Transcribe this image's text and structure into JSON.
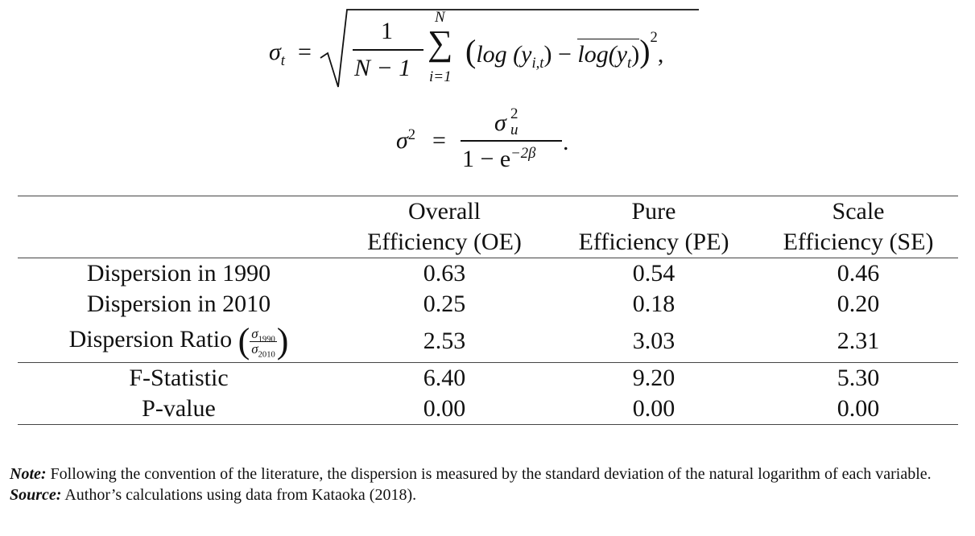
{
  "equations": [
    {
      "lhs": "σ",
      "lhs_sub": "t",
      "equals": "=",
      "numerator": "1",
      "denominator": "N − 1",
      "sum": "∑",
      "sum_upper": "N",
      "sum_lower": "i=1",
      "open": "(",
      "log": "log",
      "arg_open": "(y",
      "arg_sub": "i,t",
      "arg_close": ")",
      "minus": "−",
      "mean": "log(y",
      "mean_sub": "t",
      "mean_close": ")",
      "close": ")",
      "power": "2",
      "end": ","
    },
    {
      "lhs": "σ",
      "lhs_sup": "2",
      "equals": "=",
      "numerator": "σ",
      "numerator_sup": "2",
      "numerator_sub": "u",
      "denominator": "1 − e",
      "denominator_sup": "−2β",
      "end": "."
    }
  ],
  "table": {
    "columns": [
      {
        "line1": "Overall",
        "line2": "Efficiency (OE)"
      },
      {
        "line1": "Pure",
        "line2": "Efficiency (PE)"
      },
      {
        "line1": "Scale",
        "line2": "Efficiency (SE)"
      }
    ],
    "groups": [
      [
        {
          "label": "Dispersion in 1990",
          "values": [
            "0.63",
            "0.54",
            "0.46"
          ]
        },
        {
          "label": "Dispersion in 2010",
          "values": [
            "0.25",
            "0.18",
            "0.20"
          ]
        },
        {
          "label": "Dispersion Ratio",
          "ratio": {
            "numerator": "σ",
            "numerator_sub": "1990",
            "denominator": "σ",
            "denominator_sub": "2010"
          },
          "values": [
            "2.53",
            "3.03",
            "2.31"
          ]
        }
      ],
      [
        {
          "label": "F-Statistic",
          "values": [
            "6.40",
            "9.20",
            "5.30"
          ]
        },
        {
          "label": "P-value",
          "values": [
            "0.00",
            "0.00",
            "0.00"
          ]
        }
      ]
    ]
  },
  "notes": [
    {
      "label": "Note:",
      "text": "Following the convention of the literature, the dispersion is measured by the standard deviation of the natural logarithm of each variable."
    },
    {
      "label": "Source:",
      "text": "Author’s calculations using data from Kataoka (2018)."
    }
  ]
}
